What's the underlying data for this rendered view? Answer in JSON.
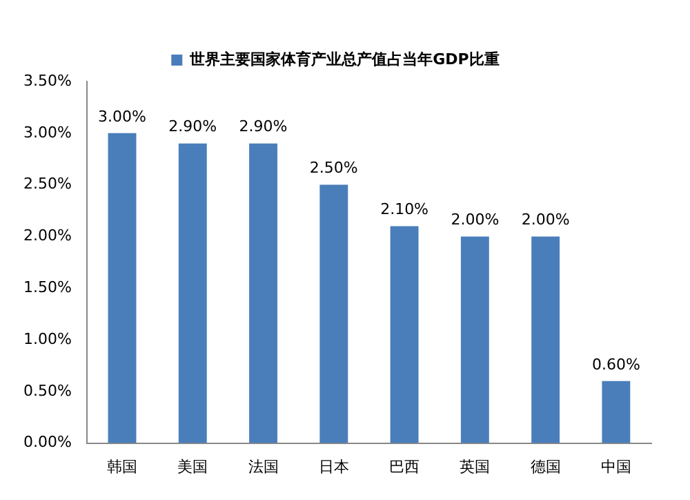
{
  "chart_data": {
    "type": "bar",
    "categories": [
      "韩国",
      "美国",
      "法国",
      "日本",
      "巴西",
      "英国",
      "德国",
      "中国"
    ],
    "series": [
      {
        "name": "世界主要国家体育产业总产值占当年GDP比重",
        "color": "#4a7ebb",
        "values": [
          3.0,
          2.9,
          2.9,
          2.5,
          2.1,
          2.0,
          2.0,
          0.6
        ],
        "value_labels": [
          "3.00%",
          "2.90%",
          "2.90%",
          "2.50%",
          "2.10%",
          "2.00%",
          "2.00%",
          "0.60%"
        ]
      }
    ],
    "ylim": [
      0,
      3.5
    ],
    "yticks": [
      {
        "value": 0,
        "label": "0.00%"
      },
      {
        "value": 0.5,
        "label": "0.50%"
      },
      {
        "value": 1,
        "label": "1.00%"
      },
      {
        "value": 1.5,
        "label": "1.50%"
      },
      {
        "value": 2,
        "label": "2.00%"
      },
      {
        "value": 2.5,
        "label": "2.50%"
      },
      {
        "value": 3,
        "label": "3.00%"
      },
      {
        "value": 3.5,
        "label": "3.50%"
      }
    ],
    "grid": false,
    "legend": "top"
  }
}
